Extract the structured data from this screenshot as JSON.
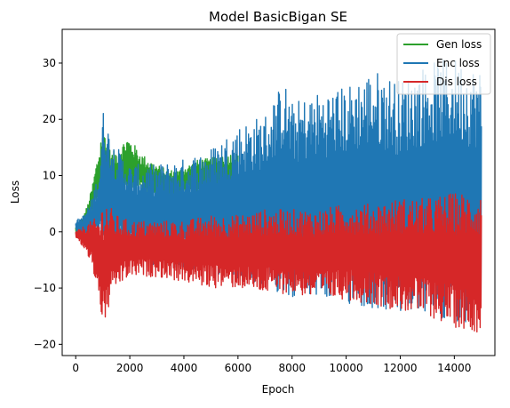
{
  "chart_data": {
    "type": "line",
    "title": "Model BasicBigan SE",
    "xlabel": "Epoch",
    "ylabel": "Loss",
    "xlim": [
      -500,
      15500
    ],
    "ylim": [
      -22,
      36
    ],
    "x_ticks": [
      0,
      2000,
      4000,
      6000,
      8000,
      10000,
      12000,
      14000
    ],
    "y_ticks": [
      -20,
      -10,
      0,
      10,
      20,
      30
    ],
    "grid": false,
    "legend_position": "top-right",
    "series": [
      {
        "name": "Gen loss",
        "color": "#2ca02c",
        "x": [
          0,
          150,
          300,
          450,
          600,
          750,
          900,
          1000,
          1100,
          1300,
          1600,
          1900,
          2100,
          2400,
          2700,
          3000,
          3400,
          3800,
          4200,
          4600,
          5000,
          5400,
          6000
        ],
        "y_upper": [
          1,
          2,
          3,
          5,
          8,
          12,
          16,
          20,
          18,
          14,
          15,
          17,
          16,
          14,
          13,
          12,
          11,
          11,
          12,
          13,
          13,
          14,
          14
        ],
        "y_lower": [
          -1,
          0,
          1,
          2,
          3,
          4,
          4,
          4,
          4,
          5,
          6,
          7,
          7,
          7,
          6,
          6,
          6,
          6,
          7,
          7,
          7,
          7,
          7
        ]
      },
      {
        "name": "Enc loss",
        "color": "#1f77b4",
        "x": [
          0,
          300,
          600,
          900,
          1000,
          1100,
          1400,
          2000,
          3000,
          4000,
          5000,
          6000,
          7000,
          7700,
          8000,
          9000,
          10000,
          11000,
          12000,
          13000,
          14000,
          15000
        ],
        "y_upper": [
          2,
          3,
          6,
          12,
          22,
          20,
          16,
          12,
          12,
          13,
          15,
          19,
          21,
          27,
          23,
          25,
          26,
          29,
          27,
          30,
          31,
          29
        ],
        "y_lower": [
          0,
          -1,
          -2,
          -2,
          -2,
          -3,
          -4,
          -5,
          -6,
          -7,
          -8,
          -9,
          -10,
          -11,
          -12,
          -12,
          -13,
          -14,
          -15,
          -15,
          -16,
          -16
        ]
      },
      {
        "name": "Dis loss",
        "color": "#d62728",
        "x": [
          0,
          300,
          600,
          900,
          1050,
          1200,
          1500,
          2000,
          3000,
          4000,
          5000,
          6000,
          7000,
          8000,
          9000,
          10000,
          11000,
          12000,
          13000,
          14000,
          15000
        ],
        "y_upper": [
          0,
          1,
          2,
          3,
          7,
          5,
          3,
          2,
          2,
          2,
          3,
          3,
          4,
          4,
          4,
          5,
          5,
          6,
          6,
          7,
          7
        ],
        "y_lower": [
          -1,
          -3,
          -6,
          -13,
          -19,
          -14,
          -10,
          -8,
          -8,
          -9,
          -10,
          -10,
          -11,
          -11,
          -12,
          -12,
          -13,
          -14,
          -15,
          -17,
          -18
        ]
      }
    ]
  }
}
